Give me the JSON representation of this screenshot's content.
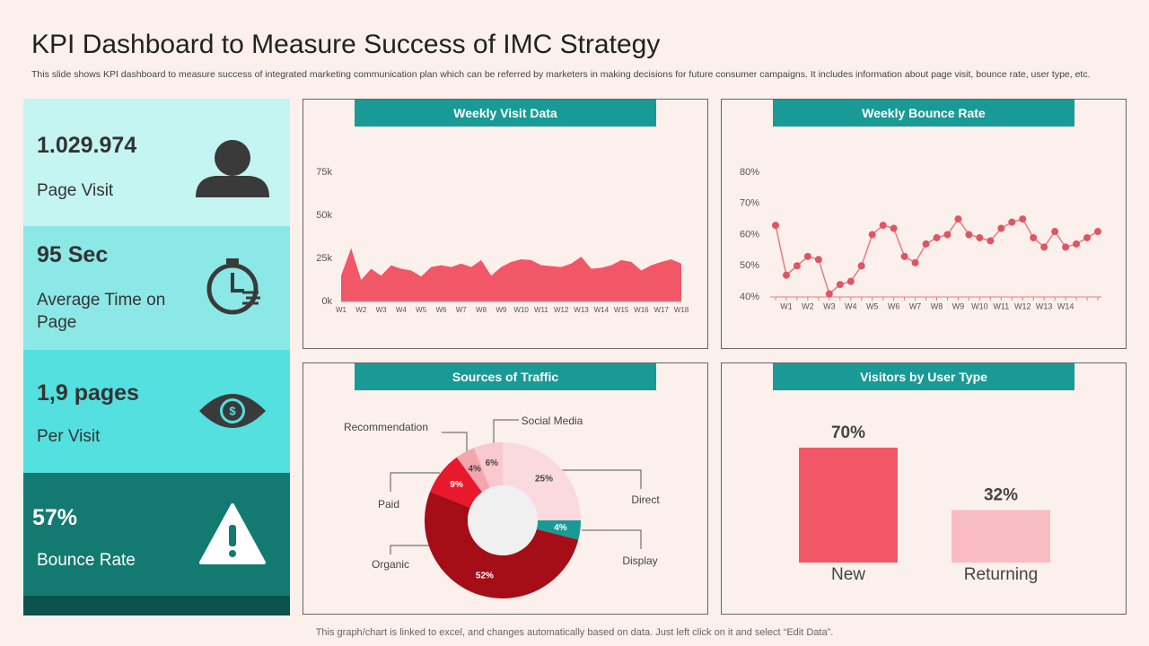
{
  "header": {
    "title": "KPI Dashboard to Measure Success of IMC Strategy",
    "subtitle": "This slide shows KPI dashboard to measure success of integrated marketing communication plan which can be referred by marketers in making decisions for future consumer campaigns. It includes information about page visit, bounce rate, user type, etc."
  },
  "kpis": [
    {
      "value": "1.029.974",
      "label": "Page Visit"
    },
    {
      "value": "95 Sec",
      "label": "Average Time on Page"
    },
    {
      "value": "1,9 pages",
      "label": "Per Visit"
    },
    {
      "value": "57%",
      "label": "Bounce Rate"
    }
  ],
  "chart_data": [
    {
      "type": "area",
      "title": "Weekly Visit Data",
      "color": "#f25767",
      "categories": [
        "W1",
        null,
        "W2",
        null,
        "W3",
        null,
        "W4",
        null,
        "W5",
        null,
        "W6",
        null,
        "W7",
        null,
        "W8",
        null,
        "W9",
        null,
        "W10",
        null,
        "W11",
        null,
        "W12",
        null,
        "W13",
        null,
        "W14",
        null,
        "W15",
        null,
        "W16",
        null,
        "W17",
        null,
        "W18"
      ],
      "values": [
        15000,
        31000,
        12500,
        19000,
        15000,
        21000,
        19000,
        18000,
        14500,
        20000,
        21000,
        20000,
        22000,
        20000,
        24000,
        15000,
        20000,
        23000,
        24500,
        24000,
        21000,
        20500,
        20000,
        22000,
        26000,
        19000,
        19500,
        21000,
        24000,
        23000,
        18000,
        21000,
        23000,
        24500,
        22000
      ],
      "ylim": [
        0,
        75000
      ],
      "yticks": [
        {
          "value": 0,
          "label": "0k"
        },
        {
          "value": 25000,
          "label": "25k"
        },
        {
          "value": 50000,
          "label": "50k"
        },
        {
          "value": 75000,
          "label": "75k"
        }
      ]
    },
    {
      "type": "line",
      "title": "Weekly Bounce Rate",
      "color": "#e05561",
      "categories": [
        null,
        "W1",
        null,
        "W2",
        null,
        "W3",
        null,
        "W4",
        null,
        "W5",
        null,
        "W6",
        null,
        "W7",
        null,
        "W8",
        null,
        "W9",
        null,
        "W10",
        null,
        "W11",
        null,
        "W12",
        null,
        "W13",
        null,
        "W14",
        null,
        null,
        null
      ],
      "values": [
        63,
        47,
        50,
        53,
        52,
        41,
        44,
        45,
        50,
        60,
        63,
        62,
        53,
        51,
        57,
        59,
        60,
        65,
        60,
        59,
        58,
        62,
        64,
        65,
        59,
        56,
        61,
        56,
        57,
        59,
        61
      ],
      "ylim": [
        40,
        80
      ],
      "yticks": [
        {
          "value": 40,
          "label": "40%"
        },
        {
          "value": 50,
          "label": "50%"
        },
        {
          "value": 60,
          "label": "60%"
        },
        {
          "value": 70,
          "label": "70%"
        },
        {
          "value": 80,
          "label": "80%"
        }
      ]
    },
    {
      "type": "donut",
      "title": "Sources of Traffic",
      "categories": [
        "Direct",
        "Display",
        "Organic",
        "Paid",
        "Recommendation",
        "Social Media"
      ],
      "values": [
        25,
        4,
        52,
        9,
        4,
        6
      ],
      "value_labels": [
        "25%",
        "4%",
        "52%",
        "9%",
        "4%",
        "6%"
      ],
      "colors": [
        "#fadadd",
        "#1a9a96",
        "#a50d17",
        "#e8192c",
        "#f4a6ae",
        "#f9c9ce"
      ]
    },
    {
      "type": "bar",
      "title": "Visitors by User Type",
      "categories": [
        "New",
        "Returning"
      ],
      "values": [
        70,
        32
      ],
      "value_labels": [
        "70%",
        "32%"
      ],
      "colors": [
        "#f25767",
        "#f9bcc2"
      ]
    }
  ],
  "footer": "This graph/chart is linked to excel, and changes automatically based on data. Just left click on it and select “Edit Data”."
}
